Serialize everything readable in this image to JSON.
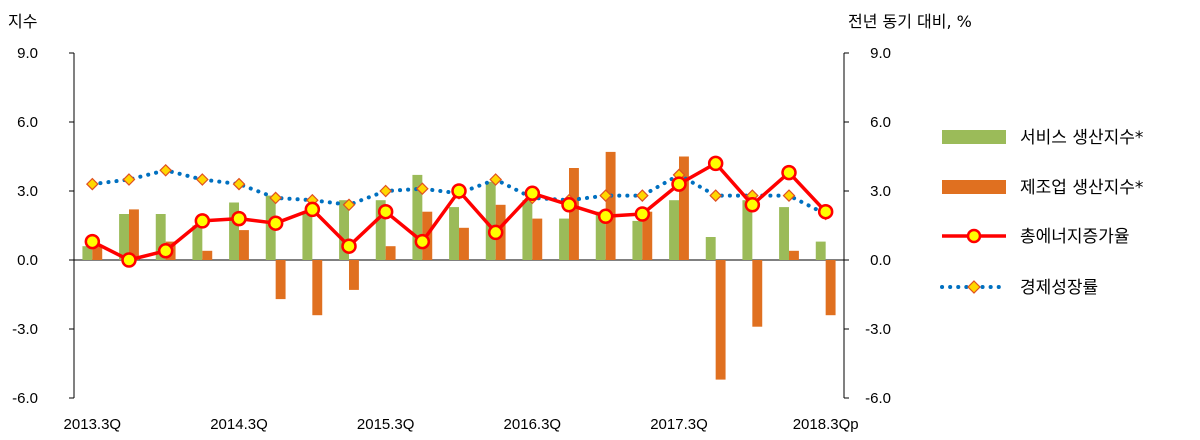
{
  "chart_data": {
    "type": "bar",
    "left_axis_label": "지수",
    "right_axis_label": "전년 동기 대비, %",
    "ylim": [
      -6.0,
      9.0
    ],
    "yticks": [
      "9.0",
      "6.0",
      "3.0",
      "0.0",
      "-3.0",
      "-6.0"
    ],
    "ytick_values": [
      9,
      6,
      3,
      0,
      -3,
      -6
    ],
    "x_tick_labels": [
      "2013.3Q",
      "2014.3Q",
      "2015.3Q",
      "2016.3Q",
      "2017.3Q",
      "2018.3Qp"
    ],
    "x_tick_indices": [
      0,
      4,
      8,
      12,
      16,
      20
    ],
    "n_periods": 21,
    "legend_position": "right",
    "series": [
      {
        "name": "서비스 생산지수*",
        "kind": "bar",
        "color": "#9BBB59",
        "values": [
          0.6,
          2.0,
          2.0,
          1.5,
          2.5,
          2.8,
          2.1,
          2.6,
          2.6,
          3.7,
          2.3,
          3.4,
          2.6,
          1.8,
          2.1,
          1.7,
          2.6,
          1.0,
          2.6,
          2.3,
          0.8
        ]
      },
      {
        "name": "제조업 생산지수*",
        "kind": "bar",
        "color": "#E07020",
        "values": [
          0.6,
          2.2,
          0.8,
          0.4,
          1.3,
          -1.7,
          -2.4,
          -1.3,
          0.6,
          2.1,
          1.4,
          2.4,
          1.8,
          4.0,
          4.7,
          2.1,
          4.5,
          -5.2,
          -2.9,
          0.4,
          -2.4
        ]
      },
      {
        "name": "총에너지증가율",
        "kind": "line",
        "color": "#FF0000",
        "marker": "#FFFF00",
        "values": [
          0.8,
          0.0,
          0.4,
          1.7,
          1.8,
          1.6,
          2.2,
          0.6,
          2.1,
          0.8,
          3.0,
          1.2,
          2.9,
          2.4,
          1.9,
          2.0,
          3.3,
          4.2,
          2.4,
          3.8,
          2.1
        ]
      },
      {
        "name": "경제성장률",
        "kind": "dotted-line",
        "color": "#0070C0",
        "marker": "#FFD700",
        "values": [
          3.3,
          3.5,
          3.9,
          3.5,
          3.3,
          2.7,
          2.6,
          2.4,
          3.0,
          3.1,
          2.9,
          3.5,
          2.7,
          2.6,
          2.8,
          2.8,
          3.7,
          2.8,
          2.8,
          2.8,
          2.0
        ]
      }
    ]
  }
}
